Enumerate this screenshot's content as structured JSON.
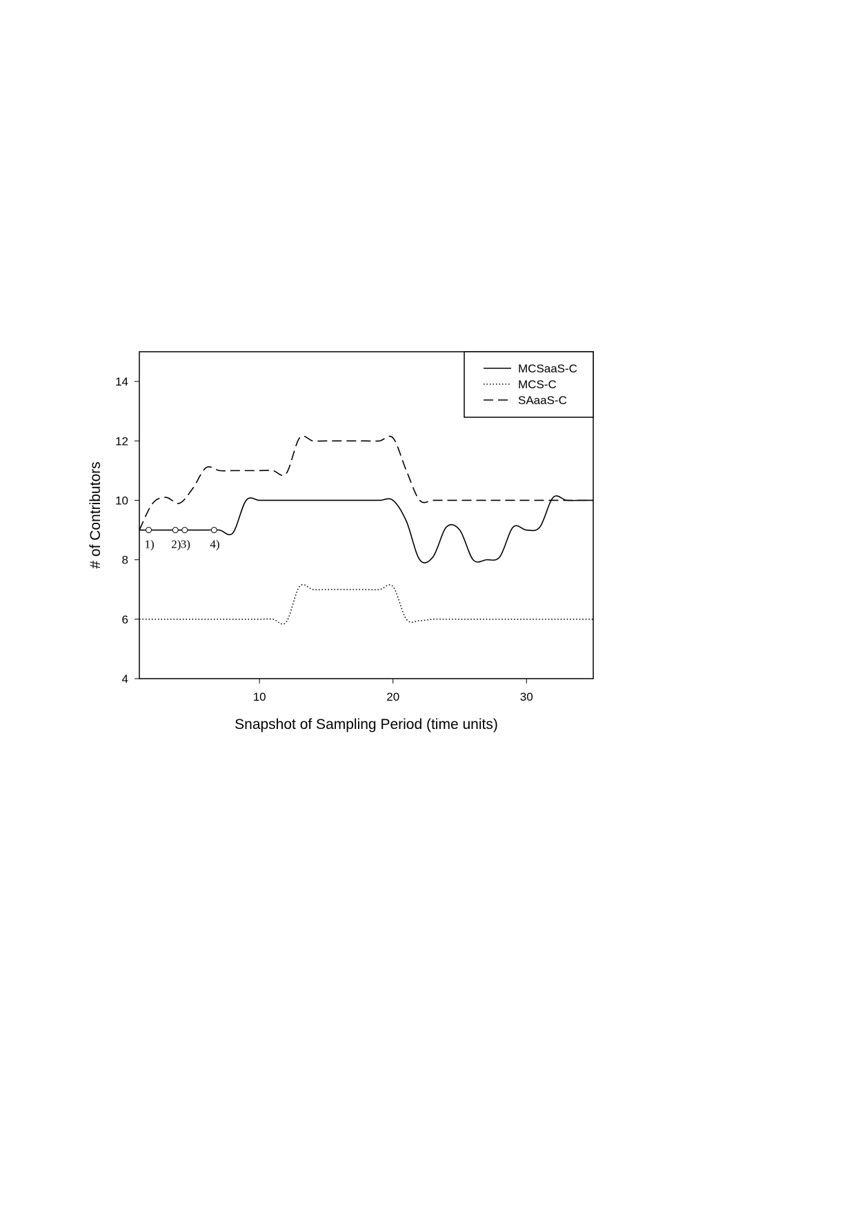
{
  "chart_data": {
    "type": "line",
    "xlabel": "Snapshot of Sampling Period (time units)",
    "ylabel": "# of Contributors",
    "x": [
      1,
      2,
      3,
      4,
      5,
      6,
      7,
      8,
      9,
      10,
      11,
      12,
      13,
      14,
      15,
      16,
      17,
      18,
      19,
      20,
      21,
      22,
      23,
      24,
      25,
      26,
      27,
      28,
      29,
      30,
      31,
      32,
      33,
      34,
      35
    ],
    "series": [
      {
        "name": "MCSaaS-C",
        "color": "#000000",
        "dash": "solid",
        "values": [
          9,
          9,
          9,
          9,
          9,
          9,
          9,
          8.9,
          10,
          10,
          10,
          10,
          10,
          10,
          10,
          10,
          10,
          10,
          10,
          10,
          9.3,
          8,
          8.1,
          9.1,
          9,
          8,
          8,
          8.1,
          9.1,
          9,
          9.1,
          10.1,
          10,
          10,
          10
        ]
      },
      {
        "name": "MCS-C",
        "color": "#000000",
        "dash": "dotted",
        "values": [
          6,
          6,
          6,
          6,
          6,
          6,
          6,
          6,
          6,
          6,
          6,
          5.9,
          7.1,
          7,
          7,
          7,
          7,
          7,
          7,
          7.1,
          6,
          5.95,
          6,
          6,
          6,
          6,
          6,
          6,
          6,
          6,
          6,
          6,
          6,
          6,
          6
        ]
      },
      {
        "name": "SAaaS-C",
        "color": "#000000",
        "dash": "dashed",
        "values": [
          9,
          9.9,
          10.1,
          9.9,
          10.4,
          11.1,
          11,
          11,
          11,
          11,
          11,
          10.9,
          12.1,
          12,
          12,
          12,
          12,
          12,
          12,
          12.1,
          11,
          10,
          10,
          10,
          10,
          10,
          10,
          10,
          10,
          10,
          10,
          10,
          10,
          10,
          10
        ]
      }
    ],
    "annotations": [
      {
        "x": 1.7,
        "y": 9,
        "label": "1)"
      },
      {
        "x": 3.7,
        "y": 9,
        "label": "2)"
      },
      {
        "x": 4.4,
        "y": 9,
        "label": "3)"
      },
      {
        "x": 6.6,
        "y": 9,
        "label": "4)"
      }
    ],
    "xlim": [
      1,
      35
    ],
    "xticks": [
      10,
      20,
      30
    ],
    "ylim": [
      4,
      15
    ],
    "yticks": [
      4,
      6,
      8,
      10,
      12,
      14
    ],
    "legend": "upper right"
  }
}
